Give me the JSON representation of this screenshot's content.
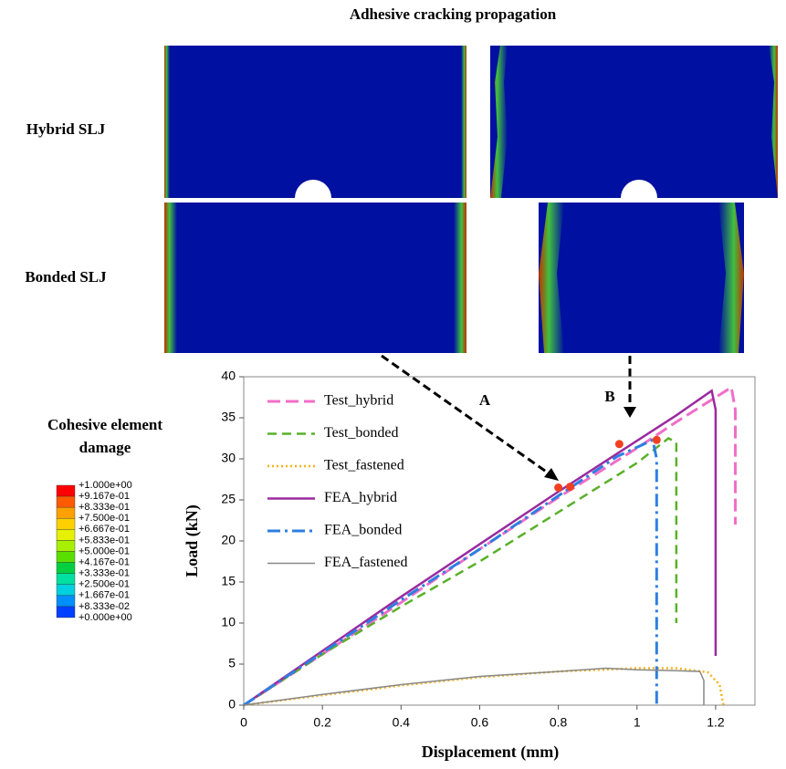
{
  "figure": {
    "title": "Adhesive cracking propagation",
    "row_labels": [
      "Hybrid SLJ",
      "Bonded SLJ"
    ],
    "annotations": [
      "A",
      "B"
    ],
    "colorbar": {
      "title_lines": [
        "Cohesive element",
        "damage"
      ],
      "labels": [
        "+1.000e+00",
        "+9.167e-01",
        "+8.333e-01",
        "+7.500e-01",
        "+6.667e-01",
        "+5.833e-01",
        "+5.000e-01",
        "+4.167e-01",
        "+3.333e-01",
        "+2.500e-01",
        "+1.667e-01",
        "+8.333e-02",
        "+0.000e+00"
      ],
      "colors": [
        "#ff0000",
        "#ff5a00",
        "#ffa000",
        "#ffd000",
        "#e6f000",
        "#a8f000",
        "#5ae000",
        "#00d040",
        "#00e0a0",
        "#00d0e0",
        "#0090ff",
        "#0040ff"
      ]
    }
  },
  "chart_data": {
    "type": "line",
    "xlabel": "Displacement (mm)",
    "ylabel": "Load (kN)",
    "xlim": [
      0,
      1.3
    ],
    "ylim": [
      0,
      40
    ],
    "xticks": [
      0,
      0.2,
      0.4,
      0.6,
      0.8,
      1,
      1.2
    ],
    "yticks": [
      0,
      5,
      10,
      15,
      20,
      25,
      30,
      35,
      40
    ],
    "series": [
      {
        "name": "Test_hybrid",
        "color": "#f06ec8",
        "dash": "14,6",
        "width": 3,
        "x": [
          0,
          0.2,
          0.4,
          0.6,
          0.8,
          1.0,
          1.1,
          1.2,
          1.24,
          1.25,
          1.25
        ],
        "values": [
          0,
          6.2,
          12.5,
          19,
          25.3,
          31.3,
          34.5,
          37.5,
          38.7,
          36,
          22
        ]
      },
      {
        "name": "Test_bonded",
        "color": "#5ab02a",
        "dash": "10,6",
        "width": 2.5,
        "x": [
          0,
          0.2,
          0.4,
          0.6,
          0.8,
          1.0,
          1.08,
          1.1,
          1.1,
          1.1
        ],
        "values": [
          0,
          6.2,
          12,
          17.5,
          23.5,
          29.5,
          32.5,
          32,
          20,
          10
        ]
      },
      {
        "name": "Test_fastened",
        "color": "#f5b21a",
        "dash": "2,3",
        "width": 2.5,
        "x": [
          0,
          0.2,
          0.4,
          0.6,
          0.8,
          1.0,
          1.1,
          1.18,
          1.21,
          1.22
        ],
        "values": [
          0,
          1.2,
          2.4,
          3.4,
          4.1,
          4.5,
          4.5,
          4,
          2.5,
          0
        ]
      },
      {
        "name": "FEA_hybrid",
        "color": "#9b2aa0",
        "dash": "",
        "width": 2.5,
        "x": [
          0,
          0.2,
          0.4,
          0.6,
          0.8,
          1.0,
          1.1,
          1.19,
          1.2,
          1.2
        ],
        "values": [
          0,
          6.6,
          13.2,
          19.6,
          26,
          32.2,
          35.3,
          38.3,
          36,
          6
        ]
      },
      {
        "name": "FEA_bonded",
        "color": "#2d7fe0",
        "dash": "14,5,3,5",
        "width": 3,
        "x": [
          0,
          0.2,
          0.4,
          0.6,
          0.8,
          0.95,
          1.04,
          1.05,
          1.05
        ],
        "values": [
          0,
          6.4,
          12.8,
          19,
          25.5,
          30.3,
          32.3,
          30,
          0
        ]
      },
      {
        "name": "FEA_fastened",
        "color": "#888888",
        "dash": "",
        "width": 1.5,
        "x": [
          0,
          0.2,
          0.4,
          0.6,
          0.8,
          0.92,
          1.0,
          1.1,
          1.16,
          1.17,
          1.17
        ],
        "values": [
          0,
          1.3,
          2.5,
          3.5,
          4.1,
          4.5,
          4.3,
          4.2,
          4.1,
          3,
          0
        ]
      }
    ],
    "markers": {
      "color": "#f04020",
      "x": [
        0.8,
        0.83,
        0.955,
        1.05
      ],
      "y": [
        26.5,
        26.6,
        31.8,
        32.3
      ]
    }
  }
}
